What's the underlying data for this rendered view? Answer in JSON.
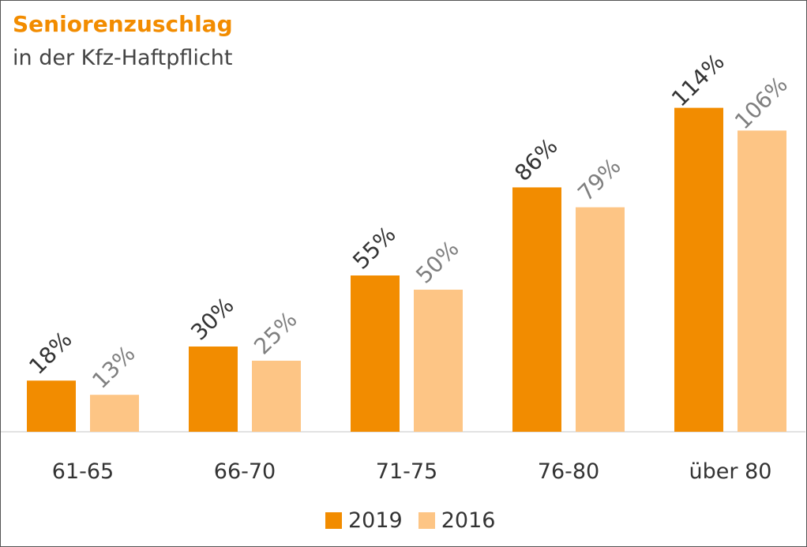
{
  "colors": {
    "series_2019": "#f28c00",
    "series_2016": "#fdc585",
    "label_2019": "#333333",
    "label_2016": "#7f7f7f",
    "axis": "#d9d9d9",
    "tick": "#333333"
  },
  "chart_data": {
    "type": "bar",
    "title": "Seniorenzuschlag",
    "subtitle": "in der Kfz-Haftpflicht",
    "categories": [
      "61-65",
      "66-70",
      "71-75",
      "76-80",
      "über 80"
    ],
    "series": [
      {
        "name": "2019",
        "values": [
          18,
          30,
          55,
          86,
          114
        ],
        "labels": [
          "18%",
          "30%",
          "55%",
          "86%",
          "114%"
        ]
      },
      {
        "name": "2016",
        "values": [
          13,
          25,
          50,
          79,
          106
        ],
        "labels": [
          "13%",
          "25%",
          "50%",
          "79%",
          "106%"
        ]
      }
    ],
    "ylim": [
      0,
      150
    ],
    "grid": false,
    "legend": "bottom-center"
  }
}
